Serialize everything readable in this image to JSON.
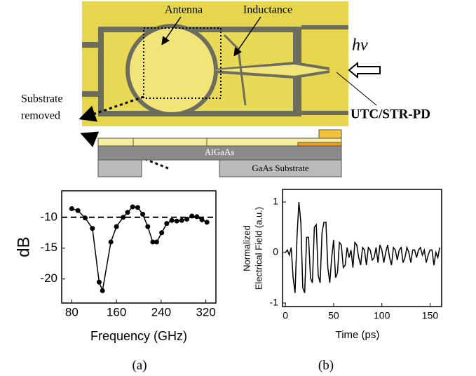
{
  "diagram": {
    "antenna": "Antenna",
    "inductance": "Inductance",
    "photon": "hν",
    "substrate_removed": [
      "Substrate",
      "removed"
    ],
    "device": "UTC/STR-PD",
    "layer_top": "AlGaAs",
    "layer_bottom": "GaAs Substrate"
  },
  "chart_data": [
    {
      "type": "line",
      "markers": true,
      "x_label": "Frequency (GHz)",
      "y_label": [
        "dB"
      ],
      "caption": "(a)",
      "x": [
        80,
        91,
        104,
        117,
        129,
        135,
        150,
        160,
        172,
        180,
        189,
        198,
        207,
        216,
        225,
        232,
        241,
        250,
        259,
        268,
        277,
        286,
        295,
        304,
        313,
        322
      ],
      "series": [
        {
          "color": "#000000",
          "values": [
            -8.6,
            -8.9,
            -10.1,
            -11.8,
            -20.5,
            -21.9,
            -14,
            -11.5,
            -10,
            -9.2,
            -8.3,
            -8.4,
            -9.5,
            -11.5,
            -14,
            -14,
            -12.5,
            -11,
            -10.5,
            -10.6,
            -10.5,
            -10.3,
            -9.8,
            -9.9,
            -10.4,
            -10.8
          ]
        }
      ],
      "reference_line": -10,
      "xlim": [
        62,
        338
      ],
      "ylim": [
        -23.9,
        -5.7
      ],
      "xticks": [
        80,
        160,
        240,
        320
      ],
      "yticks": [
        -10,
        -15,
        -20
      ]
    },
    {
      "type": "line",
      "markers": false,
      "x_label": "Time (ps)",
      "y_label": [
        "Normalized",
        "Electrical Field (a.u.)"
      ],
      "caption": "(b)",
      "x": [
        0,
        2,
        4,
        6,
        8,
        10,
        12,
        14,
        16,
        18,
        20,
        22,
        24,
        26,
        28,
        30,
        32,
        34,
        36,
        38,
        40,
        42,
        44,
        46,
        48,
        50,
        52,
        54,
        56,
        58,
        60,
        62,
        64,
        66,
        68,
        70,
        72,
        74,
        76,
        78,
        80,
        82,
        84,
        86,
        88,
        90,
        92,
        94,
        96,
        98,
        100,
        102,
        104,
        106,
        108,
        110,
        112,
        114,
        116,
        118,
        120,
        122,
        124,
        126,
        128,
        130,
        132,
        134,
        136,
        138,
        140,
        142,
        144,
        146,
        148,
        150,
        152,
        154,
        156,
        158,
        160
      ],
      "series": [
        {
          "color": "#000000",
          "values": [
            0,
            0.05,
            -0.05,
            0.1,
            -0.5,
            -0.8,
            0.3,
            1.0,
            0.6,
            -0.7,
            -0.8,
            0.3,
            0.3,
            -0.5,
            -0.6,
            0.5,
            0.55,
            -0.45,
            -0.6,
            0.4,
            0.6,
            0.6,
            -0.3,
            -0.6,
            -0.1,
            0.25,
            -0.5,
            -0.4,
            0.2,
            0.15,
            -0.3,
            -0.25,
            0.1,
            -0.1,
            0.05,
            -0.3,
            0.2,
            0.15,
            -0.1,
            -0.25,
            0.1,
            0.05,
            -0.25,
            0.1,
            0.05,
            -0.15,
            -0.1,
            0.1,
            -0.2,
            0.15,
            0.05,
            -0.2,
            0,
            0.15,
            -0.1,
            -0.25,
            0.1,
            0.05,
            -0.15,
            0.05,
            0.1,
            -0.2,
            -0.1,
            0.1,
            0,
            -0.2,
            0.05,
            0.05,
            -0.1,
            0.05,
            0.1,
            -0.05,
            0.05,
            -0.2,
            -0.05,
            0.05,
            0.05,
            -0.25,
            0,
            -0.1,
            0.1
          ]
        }
      ],
      "xlim": [
        -3,
        162
      ],
      "ylim": [
        -1.07,
        1.25
      ],
      "xticks": [
        0,
        50,
        100,
        150
      ],
      "yticks": [
        -1,
        0,
        1
      ]
    }
  ]
}
